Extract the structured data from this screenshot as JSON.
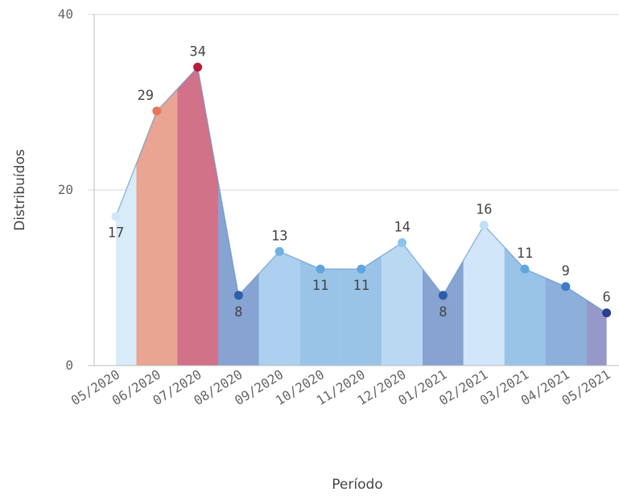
{
  "chart_data": {
    "type": "area",
    "xlabel": "Período",
    "ylabel": "Distribuídos",
    "ylim": [
      0,
      40
    ],
    "yticks": [
      "0",
      "20",
      "40"
    ],
    "grid": true,
    "categories": [
      "05/2020",
      "06/2020",
      "07/2020",
      "08/2020",
      "09/2020",
      "10/2020",
      "11/2020",
      "12/2020",
      "01/2021",
      "02/2021",
      "03/2021",
      "04/2021",
      "05/2021"
    ],
    "values": [
      17,
      29,
      34,
      8,
      13,
      11,
      11,
      14,
      8,
      16,
      11,
      9,
      6
    ],
    "colors": [
      "#d6eaf8",
      "#e8a08c",
      "#cf6a82",
      "#7f9ed0",
      "#a9cdef",
      "#94c1e6",
      "#94c1e6",
      "#b5d7f2",
      "#7f9ed0",
      "#cfe6f9",
      "#94c1e6",
      "#86abd9",
      "#8f92c6"
    ],
    "point_colors": [
      "#cfe6f9",
      "#e8745a",
      "#b81c3a",
      "#2d5fa6",
      "#6fb0e3",
      "#5ea6dd",
      "#5ea6dd",
      "#88c4ec",
      "#2d5fa6",
      "#bfe0f8",
      "#5ea6dd",
      "#3f7cc4",
      "#2a3f8f"
    ]
  }
}
